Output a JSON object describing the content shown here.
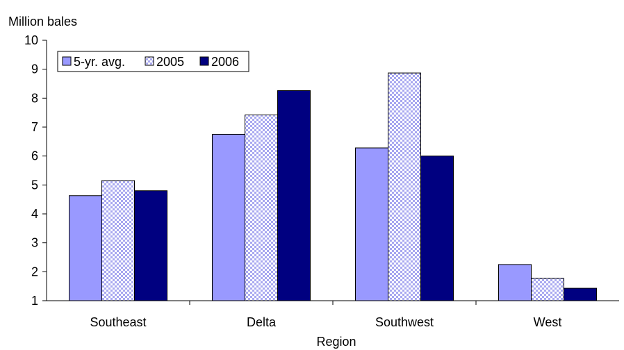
{
  "chart_data": {
    "type": "bar",
    "title": "",
    "ylabel": "Million bales",
    "xlabel": "Region",
    "ylim": [
      1,
      10
    ],
    "yticks": [
      1,
      2,
      3,
      4,
      5,
      6,
      7,
      8,
      9,
      10
    ],
    "grid": false,
    "legend": "top-left",
    "categories": [
      "Southeast",
      "Delta",
      "Southwest",
      "West"
    ],
    "series": [
      {
        "name": "5-yr. avg.",
        "values": [
          4.63,
          6.75,
          6.28,
          2.25
        ],
        "color": "#9999ff",
        "pattern": "solid"
      },
      {
        "name": "2005",
        "values": [
          5.15,
          7.42,
          8.87,
          1.78
        ],
        "color": "#c0c0ff",
        "pattern": "checker"
      },
      {
        "name": "2006",
        "values": [
          4.8,
          8.26,
          6.0,
          1.43
        ],
        "color": "#000080",
        "pattern": "solid"
      }
    ]
  }
}
